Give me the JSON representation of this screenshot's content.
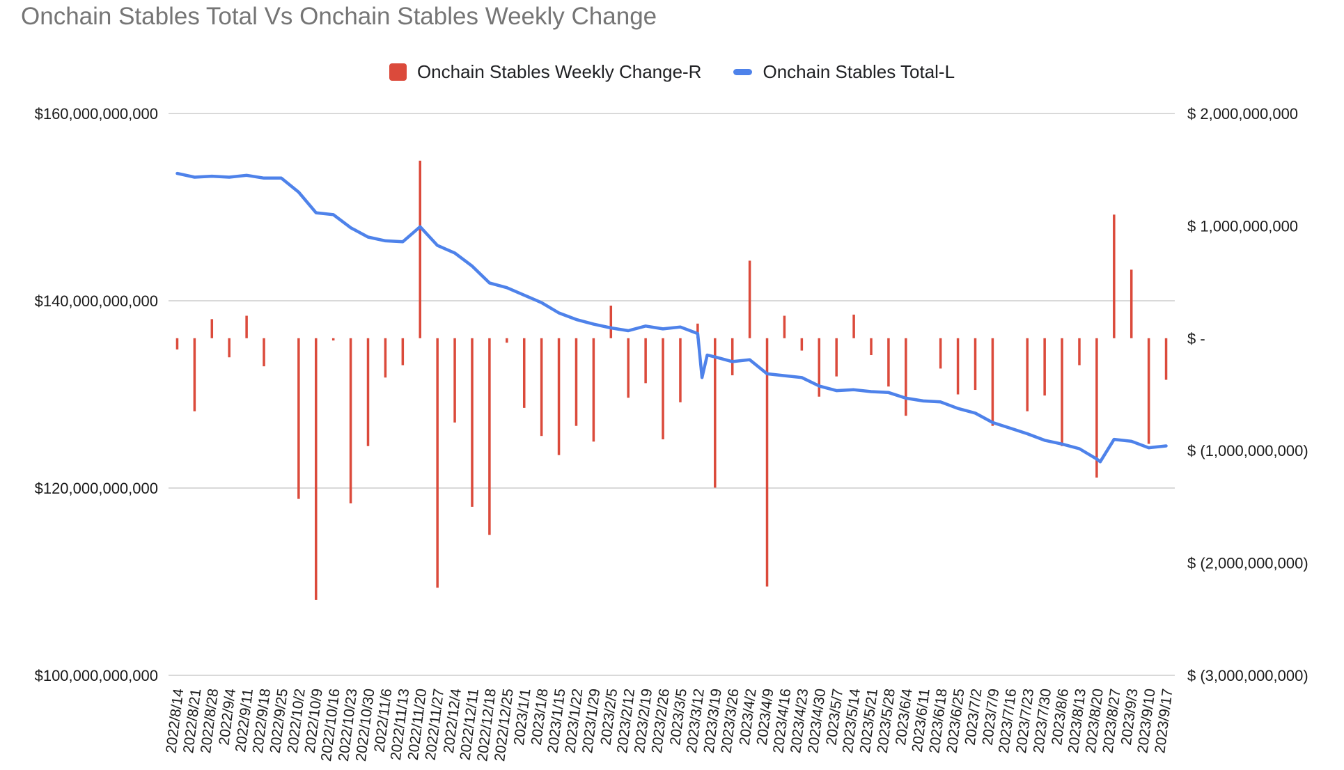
{
  "chart": {
    "title": "Onchain Stables Total Vs Onchain Stables Weekly Change",
    "title_color": "#757575",
    "background_color": "#ffffff",
    "gridline_color": "#d9d9d9",
    "axis_text_color": "#1a1a1a"
  },
  "legend": {
    "items": [
      {
        "label": "Onchain Stables Weekly Change-R",
        "marker": "square-icon",
        "color": "#db4a3b"
      },
      {
        "label": "Onchain Stables Total-L",
        "marker": "dash-icon",
        "color": "#4e82ea"
      }
    ]
  },
  "chart_data": {
    "type": "combo_bar_line",
    "title": "Onchain Stables Total Vs Onchain Stables Weekly Change",
    "grid": "horizontal-only",
    "legend_position": "top-center",
    "left_axis": {
      "label_values_billions": [
        160,
        140,
        120,
        100
      ],
      "tick_labels": [
        "$160,000,000,000",
        "$140,000,000,000",
        "$120,000,000,000",
        "$100,000,000,000"
      ],
      "range_billions": [
        100,
        160
      ]
    },
    "right_axis": {
      "label_values_billions": [
        2,
        1,
        0,
        -1,
        -2,
        -3
      ],
      "tick_labels": [
        "$ 2,000,000,000",
        "$ 1,000,000,000",
        "$ -",
        "$ (1,000,000,000)",
        "$ (2,000,000,000)",
        "$ (3,000,000,000)"
      ],
      "range_billions": [
        -3,
        2
      ]
    },
    "categories": [
      "2022/8/14",
      "2022/8/21",
      "2022/8/28",
      "2022/9/4",
      "2022/9/11",
      "2022/9/18",
      "2022/9/25",
      "2022/10/2",
      "2022/10/9",
      "2022/10/16",
      "2022/10/23",
      "2022/10/30",
      "2022/11/6",
      "2022/11/13",
      "2022/11/20",
      "2022/11/27",
      "2022/12/4",
      "2022/12/11",
      "2022/12/18",
      "2022/12/25",
      "2023/1/1",
      "2023/1/8",
      "2023/1/15",
      "2023/1/22",
      "2023/1/29",
      "2023/2/5",
      "2023/2/12",
      "2023/2/19",
      "2023/2/26",
      "2023/3/5",
      "2023/3/12",
      "2023/3/19",
      "2023/3/26",
      "2023/4/2",
      "2023/4/9",
      "2023/4/16",
      "2023/4/23",
      "2023/4/30",
      "2023/5/7",
      "2023/5/14",
      "2023/5/21",
      "2023/5/28",
      "2023/6/4",
      "2023/6/11",
      "2023/6/18",
      "2023/6/25",
      "2023/7/2",
      "2023/7/9",
      "2023/7/16",
      "2023/7/23",
      "2023/7/30",
      "2023/8/6",
      "2023/8/13",
      "2023/8/20",
      "2023/8/27",
      "2023/9/3",
      "2023/9/10",
      "2023/9/17"
    ],
    "series": [
      {
        "name": "Onchain Stables Weekly Change-R",
        "type": "bar",
        "axis": "right",
        "color": "#db4a3b",
        "values_billions": [
          -0.1,
          -0.65,
          0.17,
          -0.17,
          0.2,
          -0.25,
          0.0,
          -1.43,
          -2.33,
          -0.02,
          -1.47,
          -0.96,
          -0.35,
          -0.24,
          1.58,
          -2.22,
          -0.75,
          -1.5,
          -1.75,
          -0.04,
          -0.62,
          -0.87,
          -1.04,
          -0.78,
          -0.92,
          0.29,
          -0.53,
          -0.4,
          -0.9,
          -0.57,
          0.13,
          -1.33,
          -0.33,
          0.69,
          -2.21,
          0.2,
          -0.11,
          -0.52,
          -0.34,
          0.21,
          -0.15,
          -0.43,
          -0.69,
          0.0,
          -0.27,
          -0.5,
          -0.46,
          -0.78,
          0.0,
          -0.65,
          -0.51,
          -0.96,
          -0.24,
          -1.24,
          1.1,
          0.61,
          -0.94,
          -0.37
        ]
      },
      {
        "name": "Onchain Stables Total-L",
        "type": "line",
        "axis": "left",
        "color": "#4e82ea",
        "values_billions": [
          153.6,
          153.2,
          153.3,
          153.2,
          153.4,
          153.1,
          153.1,
          151.6,
          149.4,
          149.2,
          147.8,
          146.8,
          146.4,
          146.3,
          147.9,
          145.9,
          145.1,
          143.7,
          141.9,
          141.4,
          140.6,
          139.8,
          138.7,
          138.0,
          137.5,
          137.1,
          136.8,
          137.3,
          137.0,
          137.2,
          136.5,
          134.0,
          133.5,
          133.7,
          132.2,
          132.0,
          131.8,
          130.9,
          130.4,
          130.5,
          130.3,
          130.2,
          129.6,
          129.3,
          129.2,
          128.5,
          128.0,
          127.0,
          126.4,
          125.8,
          125.1,
          124.7,
          124.2,
          123.1,
          125.2,
          125.0,
          124.3,
          124.5
        ],
        "extra_points": [
          {
            "pos": 30.25,
            "value_billions": 131.8
          },
          {
            "pos": 30.55,
            "value_billions": 134.2
          },
          {
            "pos": 53.2,
            "value_billions": 122.8
          }
        ]
      }
    ]
  }
}
